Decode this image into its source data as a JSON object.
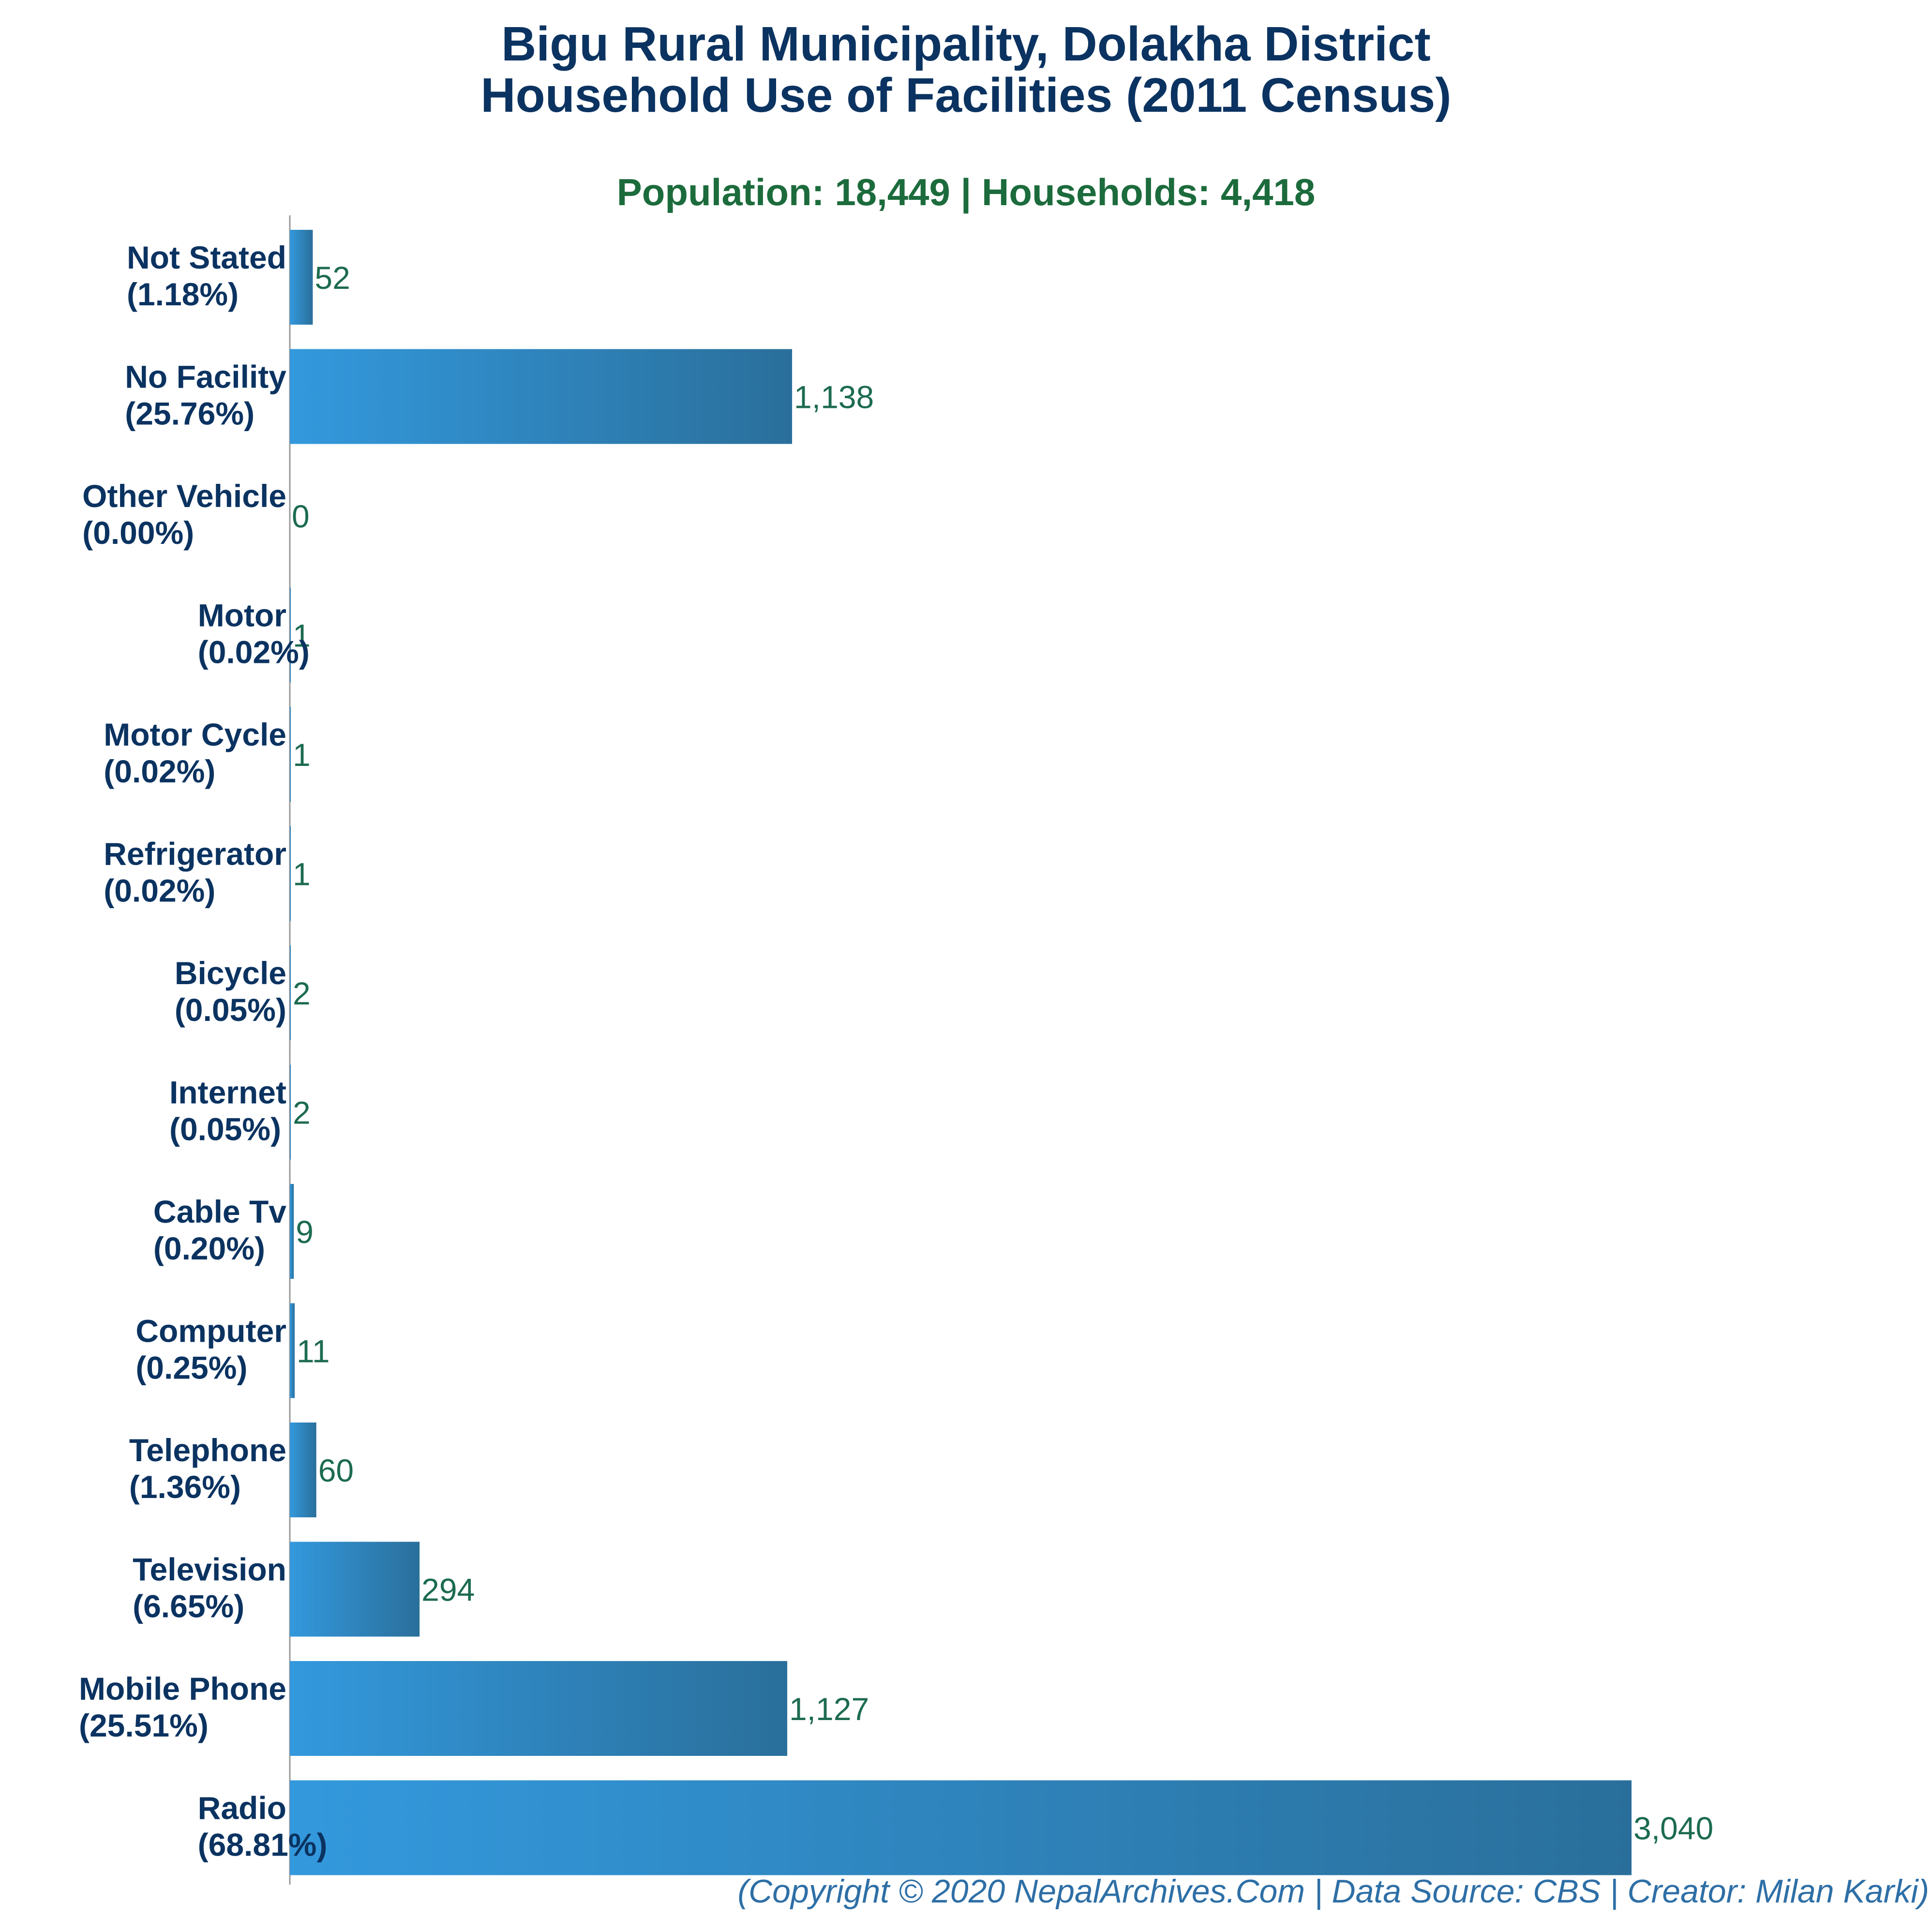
{
  "chart_data": {
    "type": "bar",
    "orientation": "horizontal",
    "title": [
      "Bigu Rural Municipality, Dolakha District",
      "Household Use of Facilities (2011 Census)"
    ],
    "subtitle": "Population: 18,449 | Households: 4,418",
    "categories": [
      "Not Stated",
      "No Facility",
      "Other Vehicle",
      "Motor",
      "Motor Cycle",
      "Refrigerator",
      "Bicycle",
      "Internet",
      "Cable Tv",
      "Computer",
      "Telephone",
      "Television",
      "Mobile Phone",
      "Radio"
    ],
    "percent_labels": [
      "(1.18%)",
      "(25.76%)",
      "(0.00%)",
      "(0.02%)",
      "(0.02%)",
      "(0.02%)",
      "(0.05%)",
      "(0.05%)",
      "(0.20%)",
      "(0.25%)",
      "(1.36%)",
      "(6.65%)",
      "(25.51%)",
      "(68.81%)"
    ],
    "values": [
      52,
      1138,
      0,
      1,
      1,
      1,
      2,
      2,
      9,
      11,
      60,
      294,
      1127,
      3040
    ],
    "value_labels": [
      "52",
      "1,138",
      "0",
      "1",
      "1",
      "1",
      "2",
      "2",
      "9",
      "11",
      "60",
      "294",
      "1,127",
      "3,040"
    ],
    "xlim": [
      0,
      3040
    ],
    "grid": false,
    "legend": "none",
    "bar_gradient": [
      "#3399dd",
      "#2a6f9b"
    ]
  },
  "footer": "(Copyright © 2020 NepalArchives.Com | Data Source: CBS | Creator: Milan Karki)"
}
